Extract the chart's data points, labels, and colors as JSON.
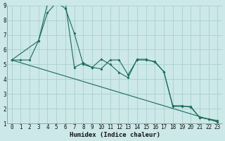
{
  "xlabel": "Humidex (Indice chaleur)",
  "bg_color": "#cce8e8",
  "grid_color": "#aacfcf",
  "line_color": "#1a6b5a",
  "line1_x": [
    0,
    1,
    2,
    3,
    4,
    5,
    6,
    7,
    8,
    9,
    10,
    11,
    12,
    13,
    14,
    15,
    16,
    17,
    18,
    19,
    20,
    21,
    22,
    23
  ],
  "line1_y": [
    5.3,
    5.3,
    5.3,
    6.6,
    8.5,
    9.2,
    8.8,
    7.1,
    5.0,
    4.8,
    4.7,
    5.3,
    5.3,
    4.3,
    5.3,
    5.3,
    5.2,
    4.5,
    2.2,
    2.2,
    2.1,
    1.4,
    1.3,
    1.2
  ],
  "line2_x": [
    0,
    3,
    4,
    6,
    7,
    8,
    9,
    10,
    11,
    12,
    13,
    14,
    15,
    16,
    17,
    18,
    19,
    20,
    21,
    22,
    23
  ],
  "line2_y": [
    5.3,
    6.6,
    9.1,
    9.2,
    4.8,
    5.1,
    4.8,
    5.35,
    5.0,
    4.45,
    4.1,
    5.35,
    5.35,
    5.15,
    4.5,
    2.15,
    2.15,
    2.15,
    1.4,
    1.3,
    1.1
  ],
  "trend_x": [
    0,
    23
  ],
  "trend_y": [
    5.3,
    1.1
  ],
  "xlim": [
    -0.5,
    23.5
  ],
  "ylim": [
    1,
    9
  ],
  "xticks": [
    0,
    1,
    2,
    3,
    4,
    5,
    6,
    7,
    8,
    9,
    10,
    11,
    12,
    13,
    14,
    15,
    16,
    17,
    18,
    19,
    20,
    21,
    22,
    23
  ],
  "yticks": [
    1,
    2,
    3,
    4,
    5,
    6,
    7,
    8,
    9
  ],
  "tick_fontsize": 5.5,
  "xlabel_fontsize": 6.5
}
